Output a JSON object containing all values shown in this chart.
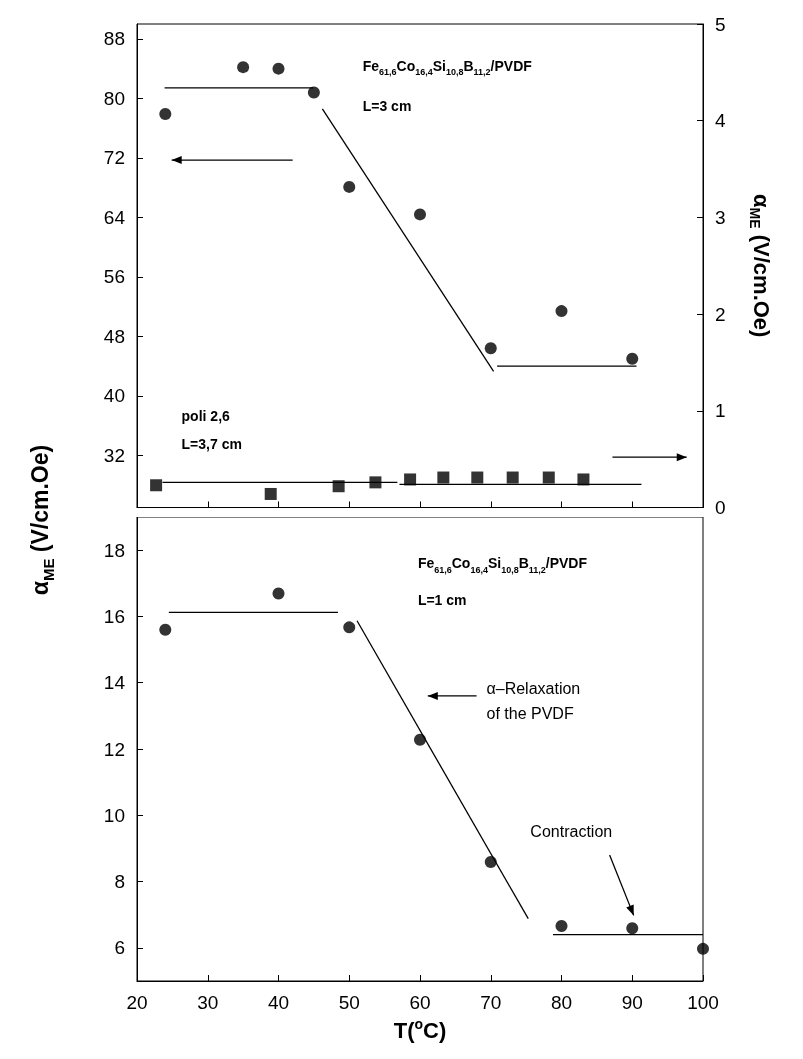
{
  "chart_data": [
    {
      "type": "scatter",
      "ylabel": "α$_{ME}$ (V/cm.Oe)",
      "y2label": "α$_{ME}$ (V/cm.Oe)",
      "xlim": [
        20,
        100
      ],
      "xticks": [
        20,
        30,
        40,
        50,
        60,
        70,
        80,
        90,
        100
      ],
      "ylim": [
        25,
        90
      ],
      "yticks": [
        32,
        40,
        48,
        56,
        64,
        72,
        80,
        88
      ],
      "y2lim": [
        0,
        5
      ],
      "y2ticks": [
        0,
        1,
        2,
        3,
        4,
        5
      ],
      "tick_labels": "y",
      "annotations": [
        "Fe$_{61,6}$Co$_{16,4}$Si$_{10,8}$B$_{11,2}$/PVDF",
        "L=3 cm",
        "poli 2,6",
        "L=3,7 cm"
      ],
      "series": [
        {
          "marker": "circle",
          "color": "#000000",
          "x": [
            24,
            35,
            40,
            45,
            50,
            60,
            70,
            80,
            90
          ],
          "values": [
            77.9,
            84.2,
            84.0,
            80.8,
            68.1,
            64.4,
            46.4,
            51.4,
            45.0
          ]
        },
        {
          "marker": "square",
          "axis": "y2",
          "color": "#000000",
          "x": [
            22.7,
            38.9,
            48.5,
            53.7,
            58.6,
            63.3,
            68.1,
            73.1,
            78.2,
            83.1
          ],
          "values": [
            0.23,
            0.14,
            0.22,
            0.26,
            0.29,
            0.31,
            0.31,
            0.31,
            0.31,
            0.29
          ]
        },
        {
          "type": "line",
          "marker": "none",
          "color": "#000000",
          "x": [
            23.9,
            44.9
          ],
          "values": [
            81.4,
            81.4
          ]
        },
        {
          "type": "line",
          "marker": "none",
          "color": "#000000",
          "x": [
            46.2,
            70.4
          ],
          "values": [
            78.6,
            43.3
          ]
        },
        {
          "type": "line",
          "marker": "none",
          "color": "#000000",
          "x": [
            70.9,
            90.6
          ],
          "values": [
            44.0,
            44.0
          ]
        },
        {
          "type": "line",
          "marker": "none",
          "axis": "y2",
          "color": "#000000",
          "x": [
            23.6,
            56.8
          ],
          "values": [
            0.26,
            0.26
          ]
        },
        {
          "type": "line",
          "marker": "none",
          "axis": "y2",
          "color": "#000000",
          "x": [
            57.1,
            91.3
          ],
          "values": [
            0.24,
            0.24
          ]
        }
      ]
    },
    {
      "type": "scatter",
      "xlabel": "T($^{o}$C)",
      "xlim": [
        20,
        100
      ],
      "xticks": [
        20,
        30,
        40,
        50,
        60,
        70,
        80,
        90,
        100
      ],
      "ylim": [
        5,
        19
      ],
      "yticks": [
        6,
        8,
        10,
        12,
        14,
        16,
        18
      ],
      "annotations": [
        "Fe$_{61,6}$Co$_{16,4}$Si$_{10,8}$B$_{11,2}$/PVDF",
        "L=1 cm",
        "α–Relaxation\nof the PVDF",
        "Contraction"
      ],
      "series": [
        {
          "marker": "circle",
          "color": "#000000",
          "x": [
            24,
            40,
            50,
            60,
            70,
            80,
            90,
            100
          ],
          "values": [
            15.6,
            16.69,
            15.67,
            12.28,
            8.59,
            6.66,
            6.59,
            5.97
          ]
        },
        {
          "type": "line",
          "marker": "none",
          "color": "#000000",
          "x": [
            24.5,
            48.4
          ],
          "values": [
            16.12,
            16.12
          ]
        },
        {
          "type": "line",
          "marker": "none",
          "color": "#000000",
          "x": [
            51.1,
            75.3
          ],
          "values": [
            15.87,
            6.88
          ]
        },
        {
          "type": "line",
          "marker": "none",
          "color": "#000000",
          "x": [
            78.8,
            100
          ],
          "values": [
            6.4,
            6.4
          ]
        }
      ]
    }
  ]
}
